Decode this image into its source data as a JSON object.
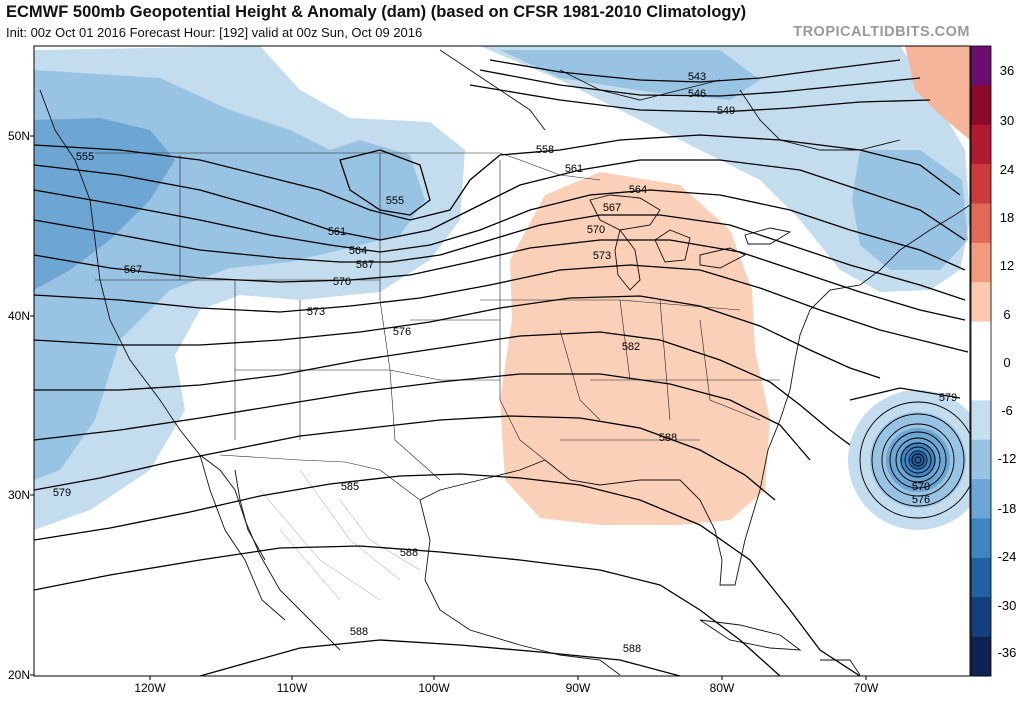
{
  "header": {
    "title": "ECMWF 500mb Geopotential Height & Anomaly (dam) (based on CFSR 1981-2010 Climatology)",
    "subtitle": "Init: 00z Oct 01 2016   Forecast Hour: [192]   valid at 00z Sun, Oct 09 2016",
    "brand": "TROPICALTIDBITS.COM"
  },
  "lat_labels": [
    "50N",
    "40N",
    "30N",
    "20N"
  ],
  "lon_labels": [
    "120W",
    "110W",
    "100W",
    "90W",
    "80W",
    "70W"
  ],
  "contour_labels": [
    "543",
    "546",
    "549",
    "555",
    "555",
    "558",
    "561",
    "561",
    "564",
    "564",
    "567",
    "567",
    "567",
    "570",
    "570",
    "573",
    "573",
    "576",
    "579",
    "579",
    "582",
    "585",
    "588",
    "588",
    "588",
    "588",
    "570",
    "576"
  ],
  "colorbar": {
    "labels": [
      "36",
      "30",
      "24",
      "18",
      "12",
      "6",
      "0",
      "-6",
      "-12",
      "-18",
      "-24",
      "-30",
      "-36"
    ],
    "colors": [
      "#6a0f6e",
      "#8b0a2a",
      "#b01b30",
      "#cc3b3b",
      "#e06a55",
      "#f29a7e",
      "#fbc9ae",
      "#ffffff",
      "#ffffff",
      "#c6dff0",
      "#97c4e4",
      "#6aa7d6",
      "#3e86c2",
      "#2062a4",
      "#13407c",
      "#0d2452"
    ]
  },
  "colors": {
    "positive_anomaly": "#fbd0b8",
    "negative_light": "#c3dcee",
    "negative_mid": "#99c3e3",
    "negative_dark": "#6ea6d3"
  }
}
